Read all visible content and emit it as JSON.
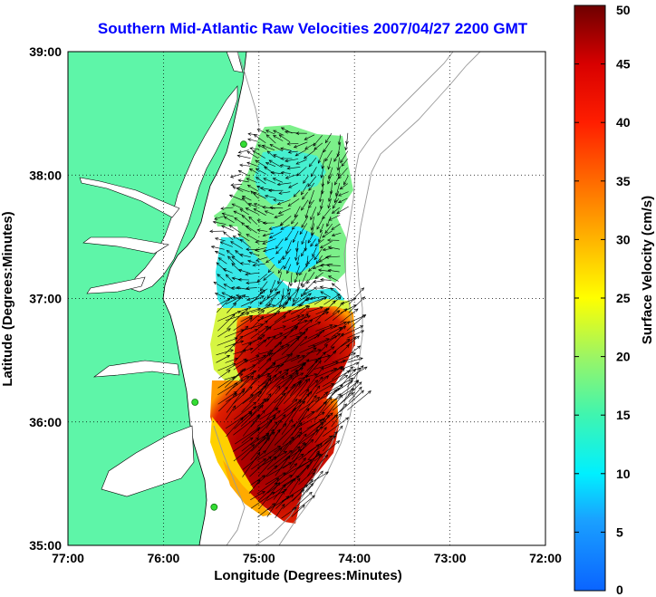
{
  "title": "Southern Mid-Atlantic Raw Velocities 2007/04/27 2200 GMT",
  "xlabel": "Longitude (Degrees:Minutes)",
  "ylabel": "Latitude (Degrees:Minutes)",
  "x_ticks": [
    "77:00",
    "76:00",
    "75:00",
    "74:00",
    "73:00",
    "72:00"
  ],
  "y_ticks": [
    "39:00",
    "38:00",
    "37:00",
    "36:00",
    "35:00"
  ],
  "colorbar": {
    "label": "Surface Velocity (cm/s)",
    "ticks": [
      "0",
      "5",
      "10",
      "15",
      "20",
      "25",
      "30",
      "35",
      "40",
      "45",
      "50"
    ],
    "range": [
      0,
      50
    ]
  },
  "colors": {
    "land": "#5ef5a8",
    "water": "#ffffff",
    "grid": "#000000",
    "isobath": "#999999",
    "arrow": "#000000",
    "title": "#0000ff",
    "station": "#33dd33"
  },
  "map_extent": {
    "lon": [
      -77,
      -72
    ],
    "lat": [
      35,
      39
    ]
  },
  "stations": [
    {
      "lon": -75.16,
      "lat": 38.25
    },
    {
      "lon": -75.67,
      "lat": 36.16
    },
    {
      "lon": -75.47,
      "lat": 35.31
    }
  ]
}
